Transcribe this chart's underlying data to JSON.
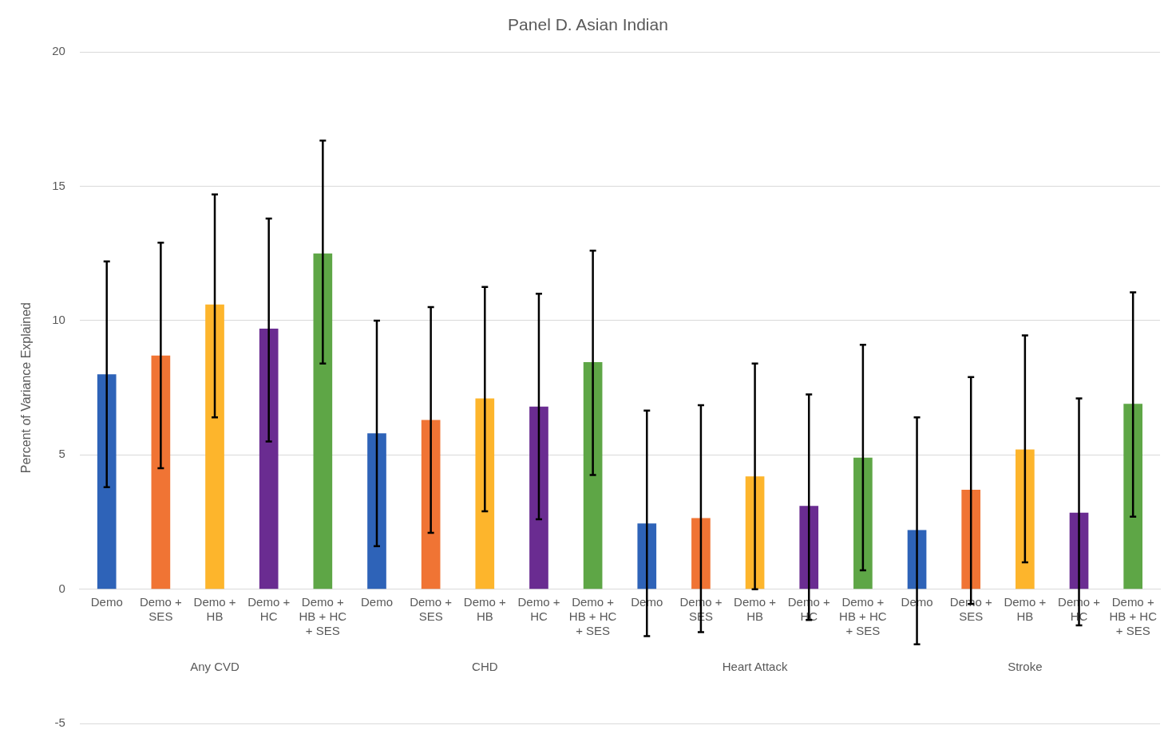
{
  "chart_data": {
    "type": "bar",
    "title": "Panel D. Asian Indian",
    "ylabel": "Percent of Variance Explained",
    "categories": [
      "Demo",
      "Demo + SES",
      "Demo + HB",
      "Demo + HC",
      "Demo + HB + HC + SES",
      "Demo",
      "Demo + SES",
      "Demo + HB",
      "Demo + HC",
      "Demo + HB + HC + SES",
      "Demo",
      "Demo + SES",
      "Demo + HB",
      "Demo + HC",
      "Demo + HB + HC + SES",
      "Demo",
      "Demo + SES",
      "Demo + HB",
      "Demo + HC",
      "Demo + HB + HC + SES"
    ],
    "values": [
      8.0,
      8.7,
      10.6,
      9.7,
      12.5,
      5.8,
      6.3,
      7.1,
      6.8,
      8.45,
      2.45,
      2.65,
      4.2,
      3.1,
      4.9,
      2.2,
      3.7,
      5.2,
      2.85,
      6.9
    ],
    "errors": [
      [
        3.8,
        12.2
      ],
      [
        4.5,
        12.9
      ],
      [
        6.4,
        14.7
      ],
      [
        5.5,
        13.8
      ],
      [
        8.4,
        16.7
      ],
      [
        1.6,
        10.0
      ],
      [
        2.1,
        10.5
      ],
      [
        2.9,
        11.25
      ],
      [
        2.6,
        11.0
      ],
      [
        4.25,
        12.6
      ],
      [
        -1.75,
        6.65
      ],
      [
        -1.6,
        6.85
      ],
      [
        0,
        8.4
      ],
      [
        -1.15,
        7.25
      ],
      [
        0.7,
        9.1
      ],
      [
        -2.05,
        6.4
      ],
      [
        -0.55,
        7.9
      ],
      [
        1.0,
        9.45
      ],
      [
        -1.35,
        7.1
      ],
      [
        2.7,
        11.05
      ]
    ],
    "colors": [
      "#2e63b8",
      "#f07434",
      "#fdb52c",
      "#6a2c91",
      "#5ea646",
      "#2e63b8",
      "#f07434",
      "#fdb52c",
      "#6a2c91",
      "#5ea646",
      "#2e63b8",
      "#f07434",
      "#fdb52c",
      "#6a2c91",
      "#5ea646",
      "#2e63b8",
      "#f07434",
      "#fdb52c",
      "#6a2c91",
      "#5ea646"
    ],
    "annotations": [
      "Any CVD",
      "CHD",
      "Heart Attack",
      "Stroke"
    ],
    "ylim": [
      -5,
      20
    ],
    "yticks": [
      -5,
      0,
      5,
      10,
      15,
      20
    ],
    "grid": "y",
    "legend": false
  }
}
